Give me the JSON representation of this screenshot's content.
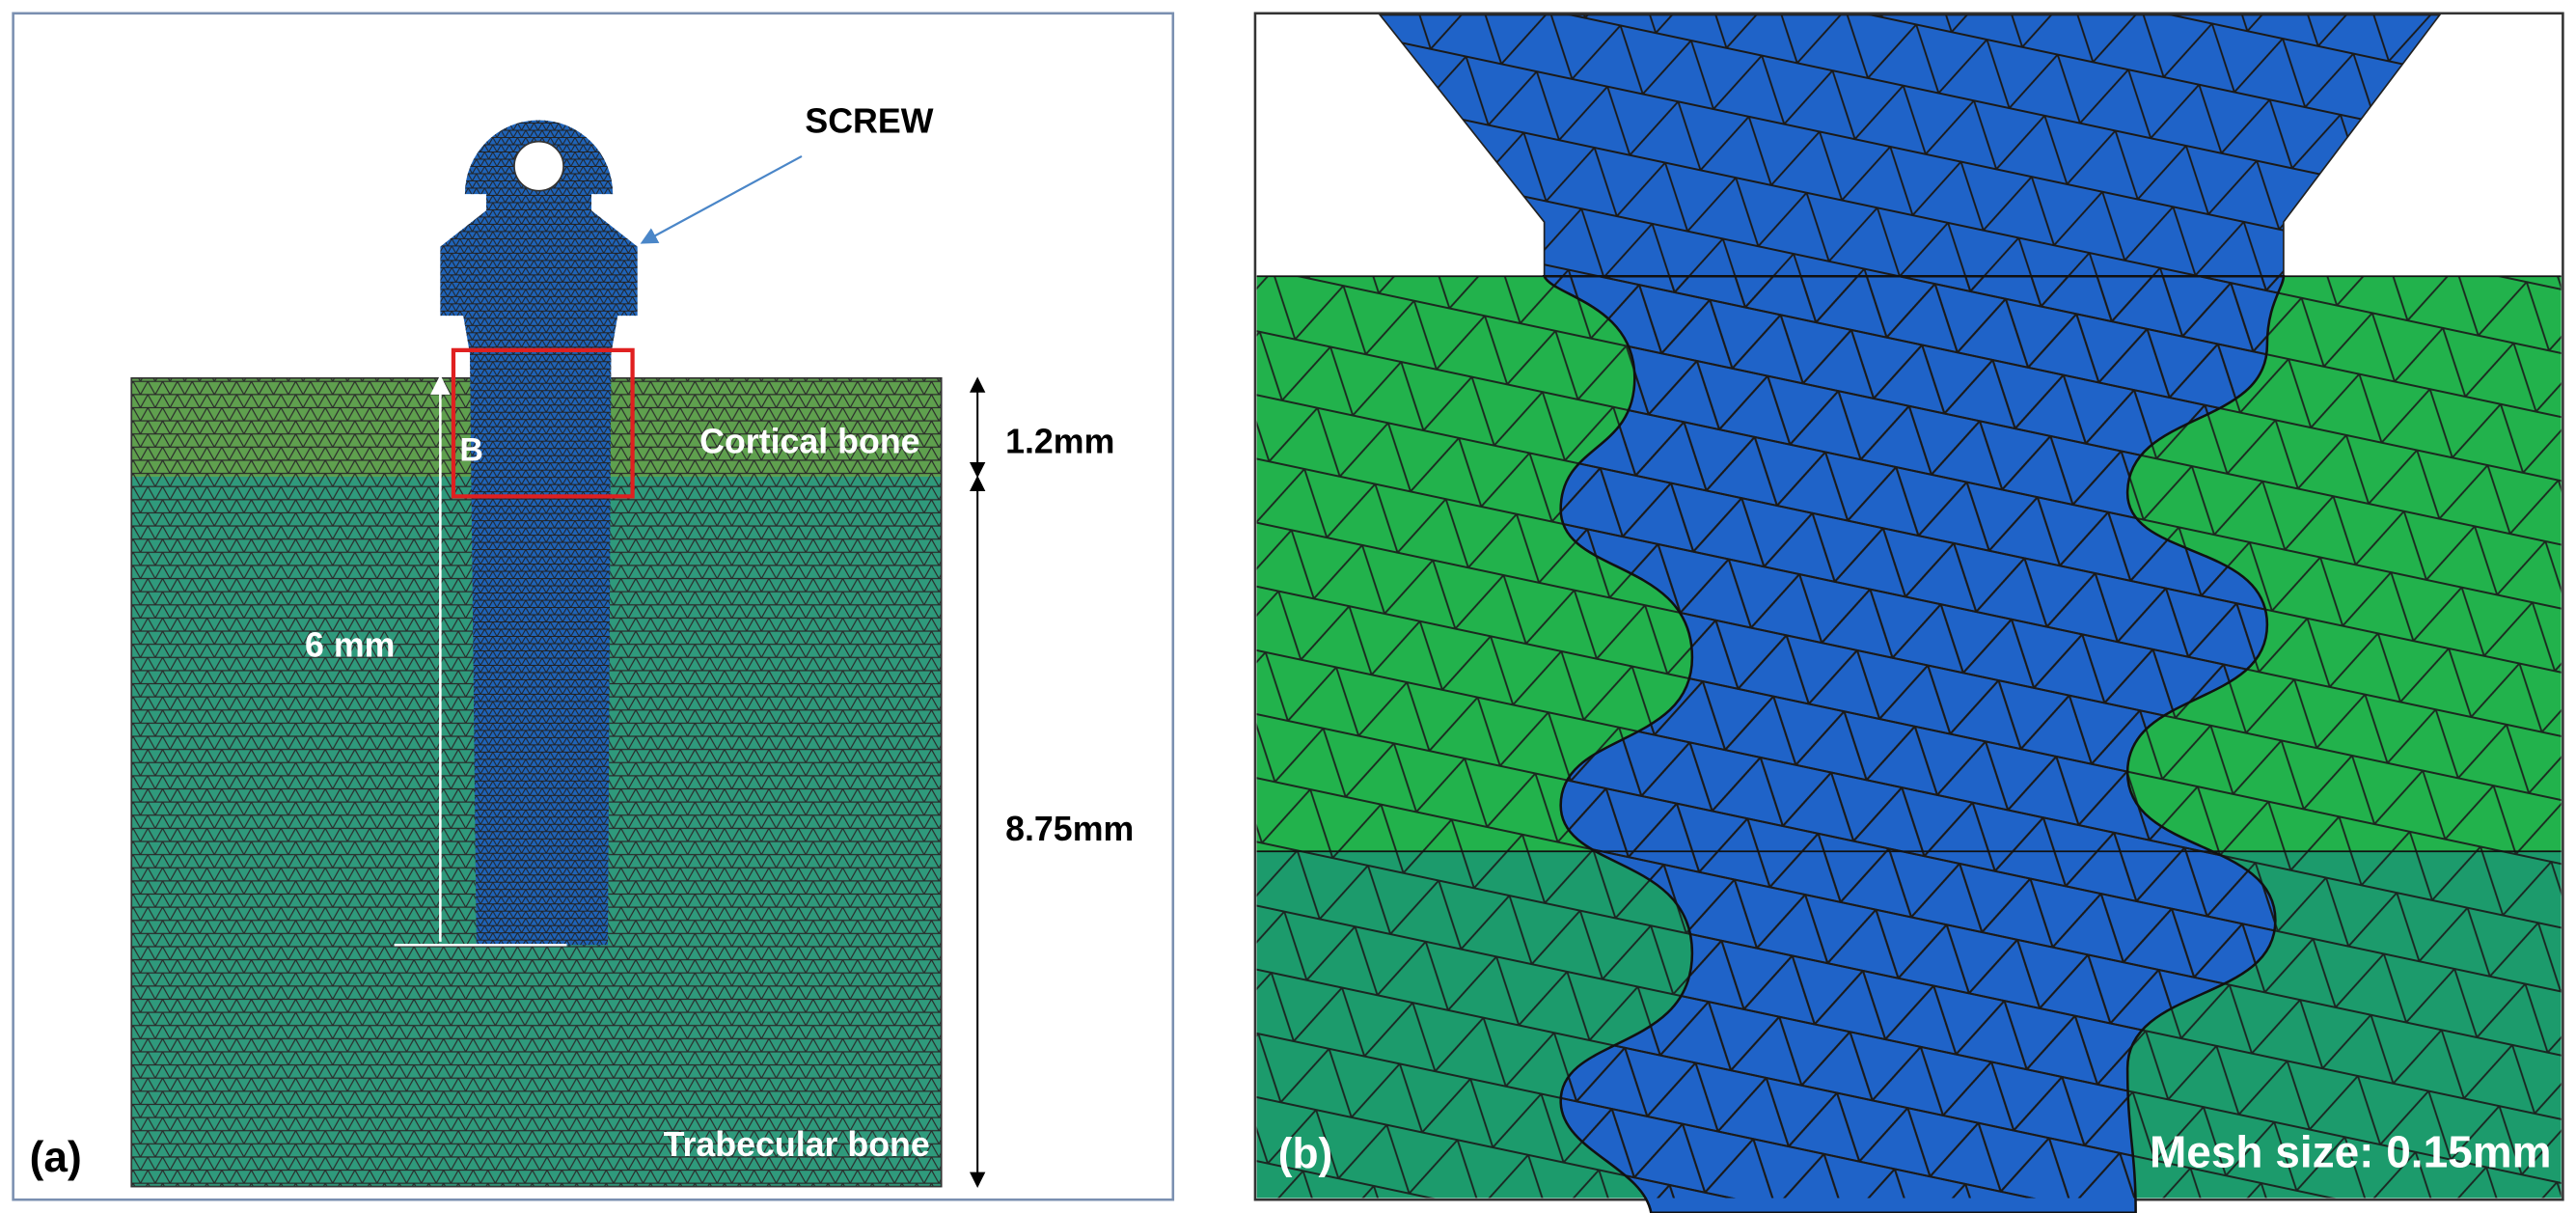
{
  "panel_a": {
    "label": "(a)",
    "screw": "SCREW",
    "detail": "B",
    "cortical": "Cortical bone",
    "cortical_thickness": "1.2mm",
    "screw_depth": "6 mm",
    "trabecular_thickness": "8.75mm",
    "trabecular": "Trabecular bone"
  },
  "panel_b": {
    "label": "(b)",
    "mesh_size": "Mesh size: 0.15mm"
  }
}
